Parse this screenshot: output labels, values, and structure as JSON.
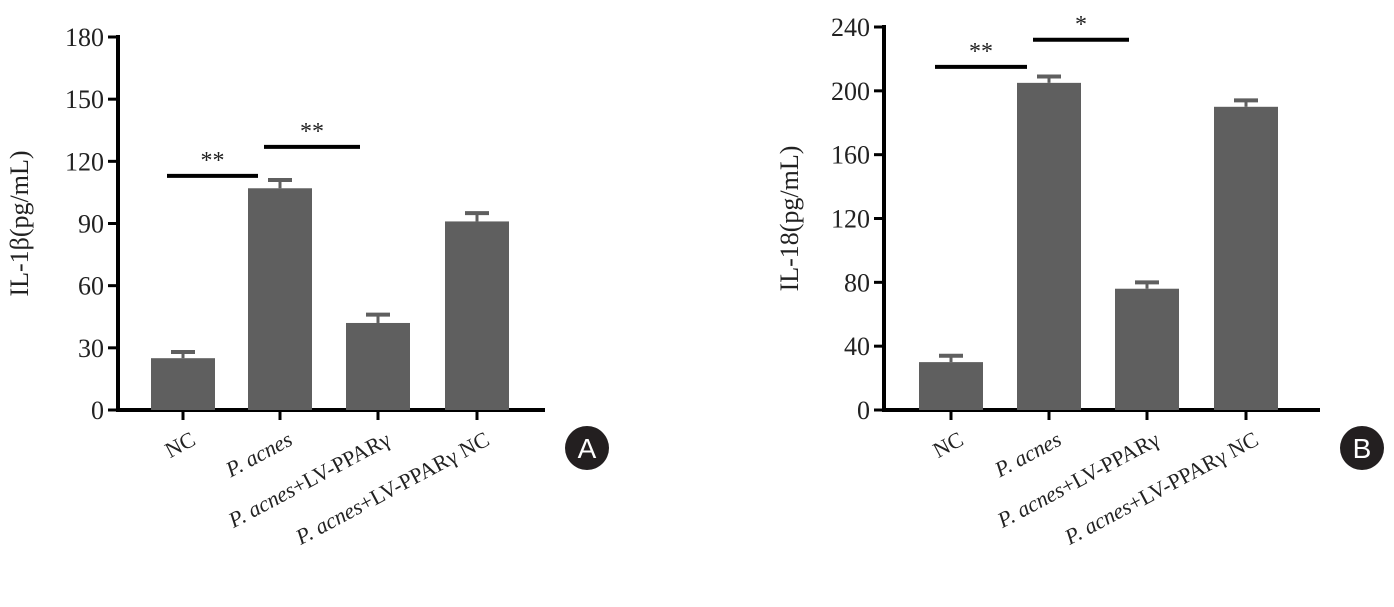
{
  "chart_data": [
    {
      "type": "bar",
      "panel_label": "A",
      "ylabel": "IL-1β(pg/mL)",
      "ylim": [
        0,
        180
      ],
      "yticks": [
        "0",
        "30",
        "60",
        "90",
        "120",
        "150",
        "180"
      ],
      "categories": [
        "NC",
        "P. acnes",
        "P. acnes+LV-PPARγ",
        "P. acnes+LV-PPARγ NC"
      ],
      "values": [
        25,
        107,
        42,
        91
      ],
      "errors": [
        3,
        4,
        4,
        4
      ],
      "bar_color": "#5f5f5f",
      "significance": [
        {
          "from": 0,
          "to": 1,
          "label": "**",
          "y": 113
        },
        {
          "from": 1,
          "to": 2,
          "label": "**",
          "y": 127
        }
      ]
    },
    {
      "type": "bar",
      "panel_label": "B",
      "ylabel": "IL-18(pg/mL)",
      "ylim": [
        0,
        240
      ],
      "yticks": [
        "0",
        "40",
        "80",
        "120",
        "160",
        "200",
        "240"
      ],
      "categories": [
        "NC",
        "P. acnes",
        "P. acnes+LV-PPARγ",
        "P. acnes+LV-PPARγ NC"
      ],
      "values": [
        30,
        205,
        76,
        190
      ],
      "errors": [
        4,
        4,
        4,
        4
      ],
      "bar_color": "#5f5f5f",
      "significance": [
        {
          "from": 0,
          "to": 1,
          "label": "**",
          "y": 215
        },
        {
          "from": 1,
          "to": 2,
          "label": "*",
          "y": 232
        }
      ]
    }
  ]
}
